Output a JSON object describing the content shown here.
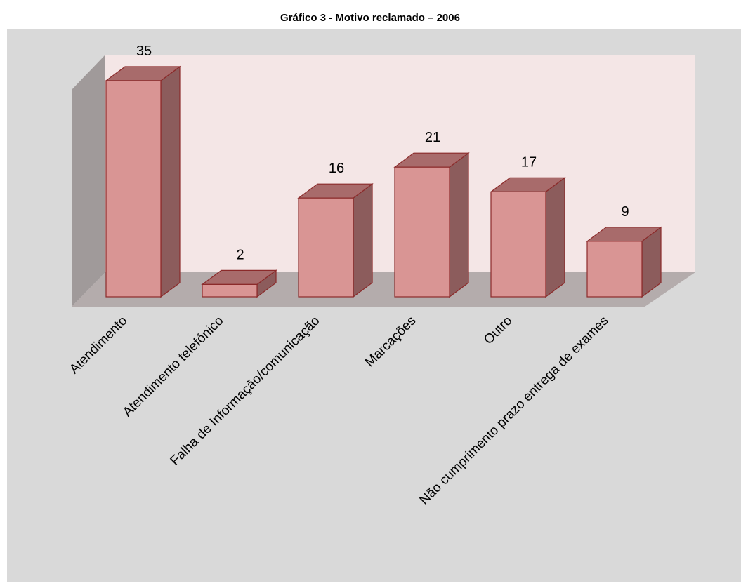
{
  "chart_data": {
    "type": "bar3d",
    "title": "Gráfico 3 - Motivo reclamado – 2006",
    "categories": [
      "Atendimento",
      "Atendimento telefónico",
      "Falha de Informação/comunicação",
      "Marcações",
      "Outro",
      "Não cumprimento prazo entrega de exames"
    ],
    "values": [
      35,
      2,
      16,
      21,
      17,
      9
    ],
    "color": "#d99594"
  }
}
